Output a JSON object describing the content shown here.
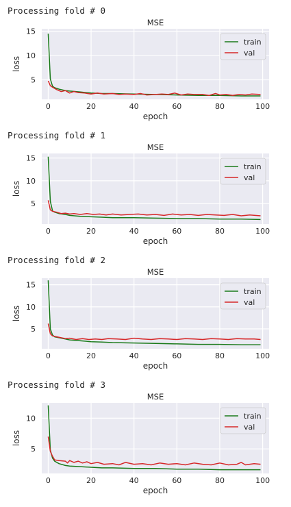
{
  "chart_data": [
    {
      "type": "line",
      "header": "Processing fold # 0",
      "title": "MSE",
      "xlabel": "epoch",
      "ylabel": "loss",
      "xlim": [
        -3,
        103
      ],
      "ylim": [
        1.0,
        15.5
      ],
      "xticks": [
        0,
        20,
        40,
        60,
        80,
        100
      ],
      "yticks": [
        5,
        10,
        15
      ],
      "grid": true,
      "legend": "top-right",
      "series": [
        {
          "name": "train",
          "color": "#1a7a1a",
          "x": [
            0,
            1,
            2,
            3,
            5,
            8,
            10,
            15,
            20,
            25,
            30,
            40,
            50,
            60,
            70,
            80,
            90,
            99
          ],
          "y": [
            14.5,
            5.2,
            3.7,
            3.4,
            3.1,
            2.8,
            2.7,
            2.5,
            2.3,
            2.2,
            2.2,
            2.1,
            2.0,
            1.9,
            1.8,
            1.8,
            1.7,
            1.7
          ]
        },
        {
          "name": "val",
          "color": "#d62728",
          "x": [
            0,
            1,
            2,
            4,
            6,
            8,
            10,
            12,
            14,
            17,
            20,
            23,
            26,
            30,
            33,
            36,
            40,
            43,
            46,
            50,
            53,
            56,
            59,
            62,
            65,
            68,
            72,
            75,
            78,
            80,
            83,
            86,
            89,
            92,
            95,
            99
          ],
          "y": [
            4.8,
            3.8,
            3.5,
            3.0,
            2.6,
            2.8,
            2.3,
            2.6,
            2.4,
            2.3,
            2.1,
            2.3,
            2.1,
            2.2,
            2.0,
            2.1,
            2.0,
            2.2,
            1.9,
            2.0,
            2.1,
            2.0,
            2.3,
            1.9,
            2.1,
            2.0,
            2.0,
            1.8,
            2.2,
            1.9,
            2.0,
            1.8,
            2.0,
            1.9,
            2.1,
            2.0
          ]
        }
      ]
    },
    {
      "type": "line",
      "header": "Processing fold # 1",
      "title": "MSE",
      "xlabel": "epoch",
      "ylabel": "loss",
      "xlim": [
        -3,
        103
      ],
      "ylim": [
        0.5,
        16.0
      ],
      "xticks": [
        0,
        20,
        40,
        60,
        80,
        100
      ],
      "yticks": [
        5,
        10,
        15
      ],
      "grid": true,
      "legend": "top-right",
      "series": [
        {
          "name": "train",
          "color": "#1a7a1a",
          "x": [
            0,
            1,
            2,
            3,
            5,
            8,
            10,
            15,
            20,
            25,
            30,
            40,
            50,
            60,
            70,
            80,
            90,
            99
          ],
          "y": [
            15.3,
            5.5,
            3.4,
            3.1,
            2.8,
            2.6,
            2.4,
            2.2,
            2.1,
            2.0,
            1.9,
            1.9,
            1.8,
            1.7,
            1.7,
            1.6,
            1.6,
            1.5
          ]
        },
        {
          "name": "val",
          "color": "#d62728",
          "x": [
            0,
            1,
            2,
            4,
            6,
            8,
            10,
            12,
            15,
            18,
            21,
            24,
            27,
            30,
            34,
            38,
            42,
            46,
            50,
            54,
            58,
            62,
            66,
            70,
            74,
            78,
            82,
            86,
            90,
            94,
            99
          ],
          "y": [
            5.7,
            3.6,
            3.3,
            3.1,
            2.8,
            2.9,
            2.7,
            2.8,
            2.6,
            2.8,
            2.6,
            2.7,
            2.5,
            2.7,
            2.5,
            2.6,
            2.7,
            2.5,
            2.6,
            2.4,
            2.7,
            2.5,
            2.6,
            2.4,
            2.6,
            2.5,
            2.4,
            2.6,
            2.3,
            2.5,
            2.3
          ]
        }
      ]
    },
    {
      "type": "line",
      "header": "Processing fold # 2",
      "title": "MSE",
      "xlabel": "epoch",
      "ylabel": "loss",
      "xlim": [
        -3,
        103
      ],
      "ylim": [
        0.5,
        16.5
      ],
      "xticks": [
        0,
        20,
        40,
        60,
        80,
        100
      ],
      "yticks": [
        5,
        10,
        15
      ],
      "grid": true,
      "legend": "top-right",
      "series": [
        {
          "name": "train",
          "color": "#1a7a1a",
          "x": [
            0,
            1,
            2,
            3,
            5,
            8,
            10,
            15,
            20,
            25,
            30,
            40,
            50,
            60,
            70,
            80,
            90,
            99
          ],
          "y": [
            16.0,
            5.0,
            3.6,
            3.2,
            3.0,
            2.7,
            2.5,
            2.3,
            2.1,
            2.0,
            1.9,
            1.8,
            1.7,
            1.6,
            1.5,
            1.5,
            1.4,
            1.4
          ]
        },
        {
          "name": "val",
          "color": "#d62728",
          "x": [
            0,
            1,
            2,
            4,
            6,
            8,
            10,
            13,
            16,
            19,
            22,
            25,
            28,
            32,
            36,
            40,
            44,
            48,
            52,
            56,
            60,
            64,
            68,
            72,
            76,
            80,
            84,
            88,
            92,
            96,
            99
          ],
          "y": [
            6.2,
            3.9,
            3.4,
            3.2,
            3.0,
            2.8,
            2.9,
            2.6,
            2.8,
            2.6,
            2.7,
            2.6,
            2.8,
            2.7,
            2.6,
            2.9,
            2.7,
            2.6,
            2.8,
            2.7,
            2.6,
            2.8,
            2.7,
            2.6,
            2.8,
            2.7,
            2.6,
            2.8,
            2.7,
            2.7,
            2.6
          ]
        }
      ]
    },
    {
      "type": "line",
      "header": "Processing fold # 3",
      "title": "MSE",
      "xlabel": "epoch",
      "ylabel": "loss",
      "xlim": [
        -3,
        103
      ],
      "ylim": [
        1.0,
        12.5
      ],
      "xticks": [
        0,
        20,
        40,
        60,
        80,
        100
      ],
      "yticks": [
        5,
        10
      ],
      "grid": true,
      "legend": "top-right",
      "series": [
        {
          "name": "train",
          "color": "#1a7a1a",
          "x": [
            0,
            1,
            2,
            3,
            5,
            8,
            10,
            15,
            20,
            25,
            30,
            40,
            50,
            60,
            70,
            80,
            90,
            99
          ],
          "y": [
            12.1,
            4.8,
            3.5,
            3.0,
            2.6,
            2.3,
            2.2,
            2.1,
            2.0,
            1.9,
            1.9,
            1.8,
            1.8,
            1.7,
            1.7,
            1.6,
            1.6,
            1.6
          ]
        },
        {
          "name": "val",
          "color": "#d62728",
          "x": [
            0,
            1,
            2,
            3,
            5,
            8,
            9,
            10,
            12,
            14,
            16,
            18,
            20,
            23,
            26,
            30,
            33,
            36,
            40,
            44,
            48,
            52,
            56,
            60,
            64,
            68,
            72,
            76,
            80,
            84,
            88,
            90,
            92,
            96,
            99
          ],
          "y": [
            7.0,
            4.6,
            3.8,
            3.2,
            3.1,
            3.0,
            2.7,
            3.1,
            2.8,
            3.0,
            2.7,
            2.9,
            2.6,
            2.8,
            2.5,
            2.6,
            2.4,
            2.8,
            2.5,
            2.6,
            2.4,
            2.7,
            2.5,
            2.6,
            2.4,
            2.7,
            2.5,
            2.4,
            2.7,
            2.4,
            2.5,
            2.8,
            2.4,
            2.6,
            2.5
          ]
        }
      ]
    }
  ]
}
